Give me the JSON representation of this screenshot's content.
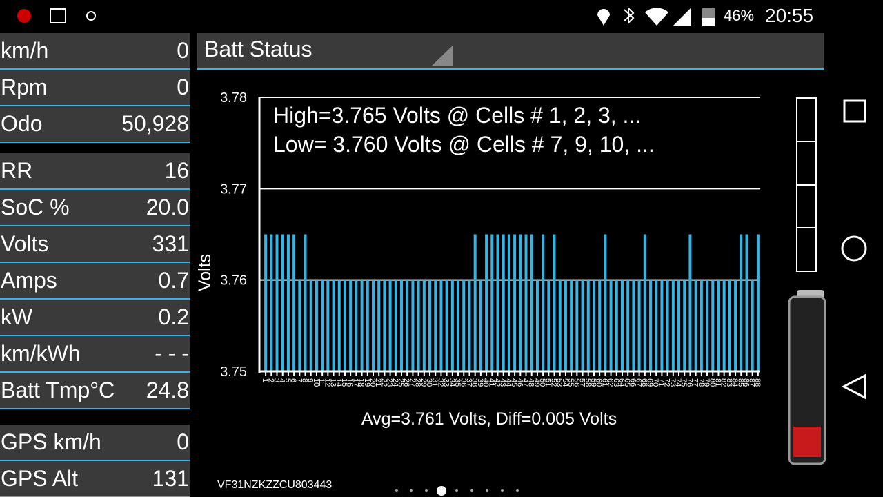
{
  "status_bar": {
    "battery": "46%",
    "time": "20:55"
  },
  "readout_groups": [
    [
      {
        "label": "km/h",
        "value": "0"
      },
      {
        "label": "Rpm",
        "value": "0"
      },
      {
        "label": "Odo",
        "value": "50,928"
      }
    ],
    [
      {
        "label": "RR",
        "value": "16"
      },
      {
        "label": "SoC %",
        "value": "20.0"
      },
      {
        "label": "Volts",
        "value": "331"
      },
      {
        "label": "Amps",
        "value": "0.7"
      },
      {
        "label": "kW",
        "value": "0.2"
      },
      {
        "label": "km/kWh",
        "value": "- - -"
      },
      {
        "label": "Batt Tmp°C",
        "value": "24.8"
      }
    ],
    [
      {
        "label": "GPS km/h",
        "value": "0"
      },
      {
        "label": "GPS Alt",
        "value": "131"
      }
    ]
  ],
  "selector": {
    "label": "Batt Status"
  },
  "chart_data": {
    "type": "bar",
    "annotations": [
      "High=3.765 Volts @ Cells # 1, 2, 3,  ...",
      "Low= 3.760 Volts @ Cells # 7, 9, 10,  ..."
    ],
    "x_label": "Avg=3.761 Volts, Diff=0.005 Volts",
    "y_label": "Volts",
    "categories": [
      "1",
      "2",
      "3",
      "4",
      "5",
      "6",
      "7",
      "8",
      "9",
      "10",
      "11",
      "12",
      "13",
      "14",
      "15",
      "16",
      "17",
      "18",
      "19",
      "20",
      "21",
      "22",
      "23",
      "24",
      "25",
      "26",
      "27",
      "28",
      "29",
      "30",
      "31",
      "32",
      "33",
      "34",
      "35",
      "36",
      "37",
      "38",
      "39",
      "40",
      "41",
      "42",
      "43",
      "44",
      "45",
      "46",
      "47",
      "48",
      "49",
      "50",
      "51",
      "52",
      "53",
      "54",
      "55",
      "56",
      "57",
      "58",
      "59",
      "60",
      "61",
      "62",
      "63",
      "64",
      "65",
      "66",
      "67",
      "68",
      "69",
      "70",
      "71",
      "72",
      "73",
      "74",
      "75",
      "76",
      "77",
      "78",
      "79",
      "80",
      "81",
      "82",
      "83",
      "84",
      "85",
      "86",
      "87",
      "88"
    ],
    "values": [
      3.765,
      3.765,
      3.765,
      3.765,
      3.765,
      3.765,
      3.76,
      3.765,
      3.76,
      3.76,
      3.76,
      3.76,
      3.76,
      3.76,
      3.76,
      3.76,
      3.76,
      3.76,
      3.76,
      3.76,
      3.76,
      3.76,
      3.76,
      3.76,
      3.76,
      3.76,
      3.76,
      3.76,
      3.76,
      3.76,
      3.76,
      3.76,
      3.76,
      3.76,
      3.76,
      3.76,
      3.76,
      3.765,
      3.76,
      3.765,
      3.765,
      3.765,
      3.765,
      3.765,
      3.765,
      3.765,
      3.765,
      3.765,
      3.76,
      3.765,
      3.76,
      3.765,
      3.76,
      3.76,
      3.76,
      3.76,
      3.76,
      3.76,
      3.76,
      3.76,
      3.765,
      3.76,
      3.76,
      3.76,
      3.76,
      3.76,
      3.76,
      3.765,
      3.76,
      3.76,
      3.76,
      3.76,
      3.76,
      3.76,
      3.76,
      3.765,
      3.76,
      3.76,
      3.76,
      3.76,
      3.76,
      3.76,
      3.76,
      3.76,
      3.765,
      3.765,
      3.76,
      3.765
    ],
    "color": "#33b5e5",
    "ylim": [
      3.75,
      3.78
    ],
    "yticks": [
      3.75,
      3.76,
      3.77,
      3.78
    ],
    "grid": true
  },
  "vin": "VF31NZKZZCU803443"
}
